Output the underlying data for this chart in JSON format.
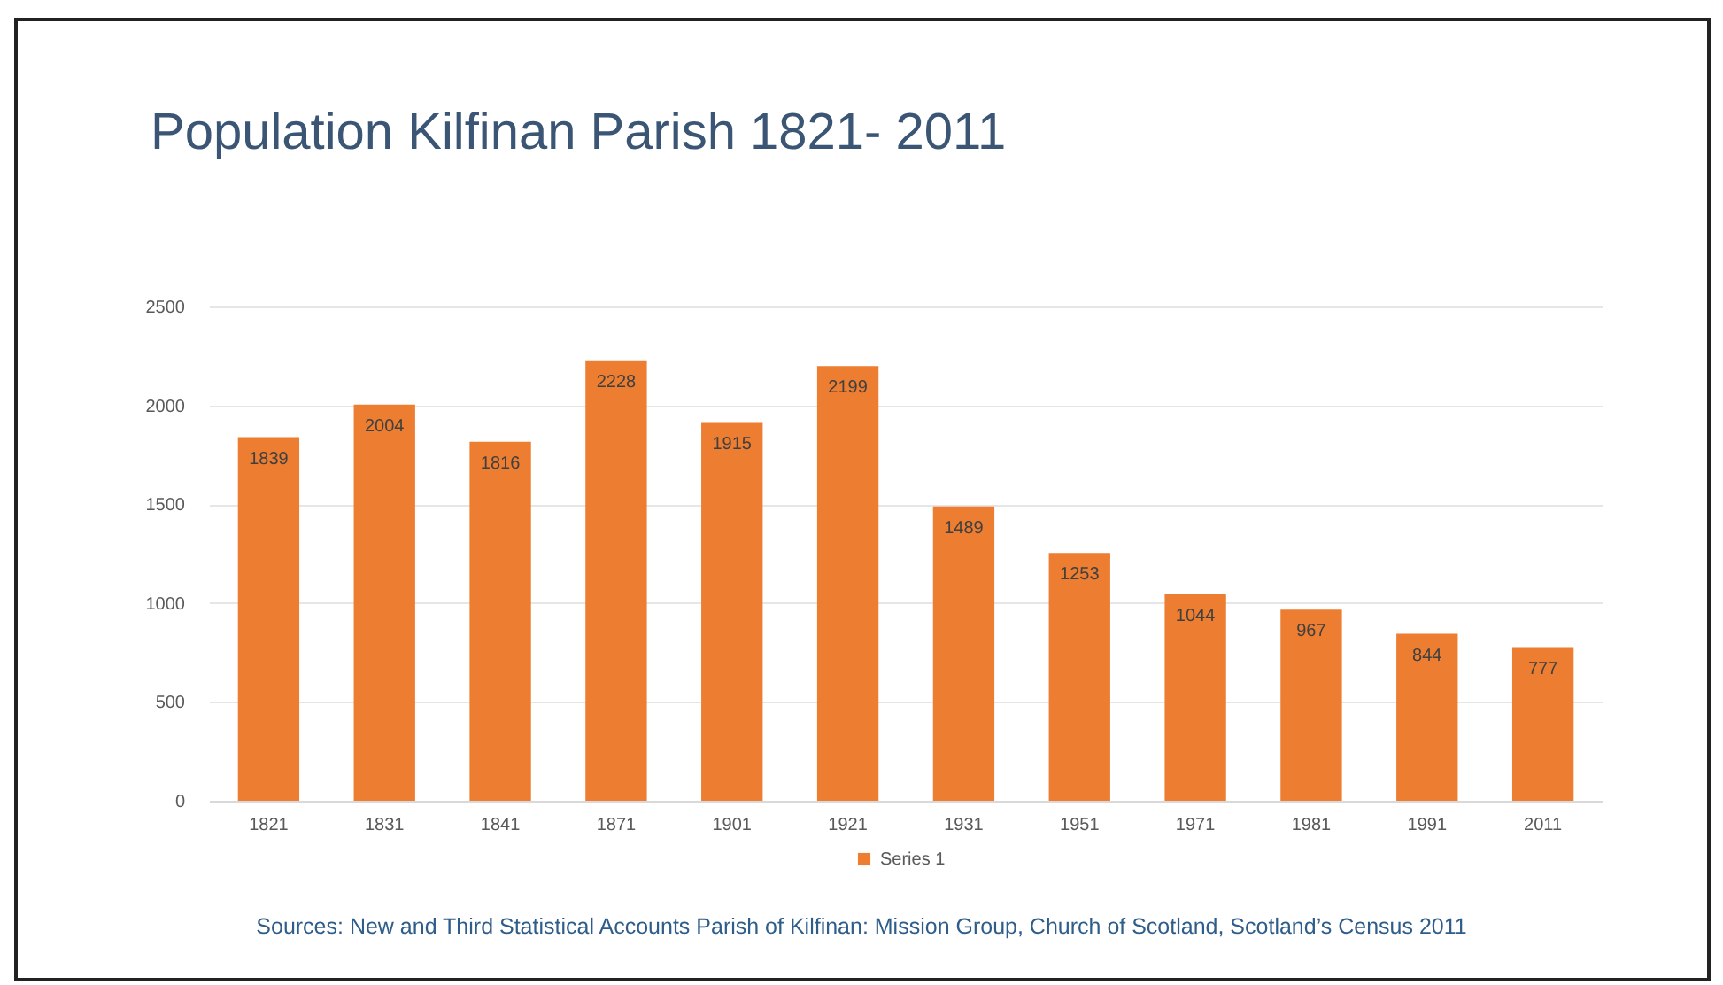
{
  "chart_data": {
    "type": "bar",
    "title": "Population Kilfinan Parish 1821- 2011",
    "categories": [
      "1821",
      "1831",
      "1841",
      "1871",
      "1901",
      "1921",
      "1931",
      "1951",
      "1971",
      "1981",
      "1991",
      "2011"
    ],
    "series": [
      {
        "name": "Series 1",
        "color": "#ed7d31",
        "values": [
          1839,
          2004,
          1816,
          2228,
          1915,
          2199,
          1489,
          1253,
          1044,
          967,
          844,
          777
        ]
      }
    ],
    "ylim": [
      0,
      2500
    ],
    "yticks": [
      0,
      500,
      1000,
      1500,
      2000,
      2500
    ],
    "grid": "y",
    "legend": "bottom",
    "data_labels": true,
    "annotations": [
      "Sources: New and Third Statistical Accounts Parish of Kilfinan: Mission Group, Church of Scotland, Scotland’s Census 2011"
    ]
  }
}
